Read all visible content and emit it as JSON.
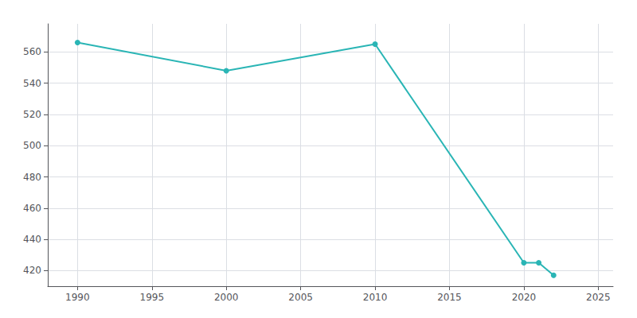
{
  "chart_data": {
    "type": "line",
    "x": [
      1990,
      2000,
      2010,
      2020,
      2021,
      2022
    ],
    "values": [
      566,
      548,
      565,
      425,
      425,
      417
    ],
    "color": "#2ab5b5",
    "marker": "o",
    "xlim": [
      1988,
      2026
    ],
    "ylim": [
      410,
      578
    ],
    "xticks": [
      1990,
      1995,
      2000,
      2005,
      2010,
      2015,
      2020,
      2025
    ],
    "yticks": [
      420,
      440,
      460,
      480,
      500,
      520,
      540,
      560
    ],
    "grid": true
  }
}
